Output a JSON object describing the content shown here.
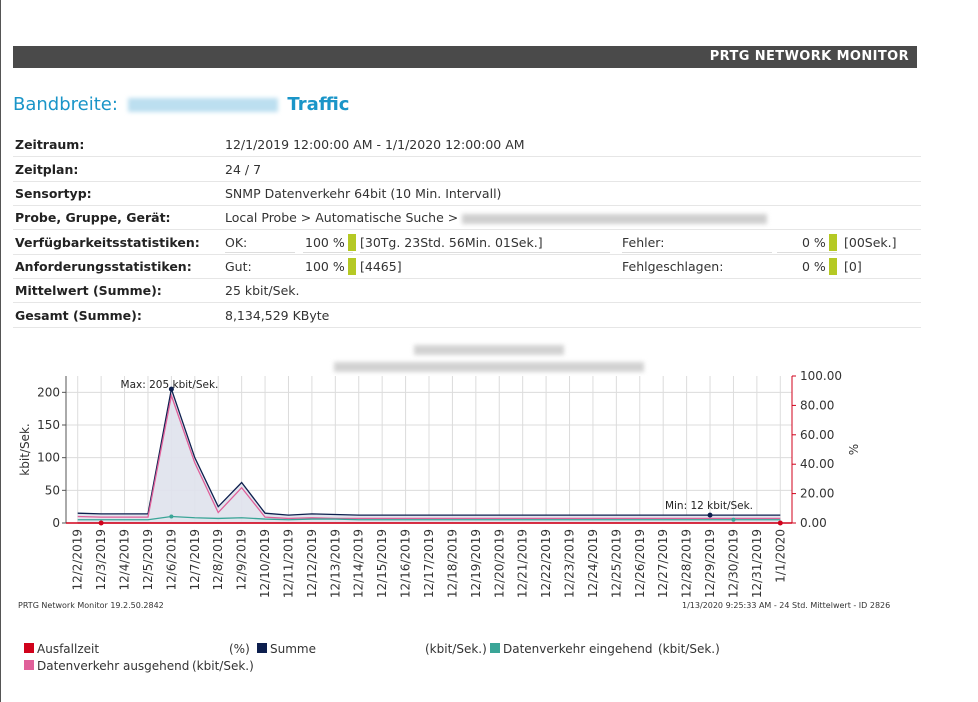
{
  "header": {
    "brand": "PRTG NETWORK MONITOR"
  },
  "report": {
    "title_prefix": "Bandbreite:",
    "title_suffix": "Traffic"
  },
  "info": {
    "zeitraum_label": "Zeitraum:",
    "zeitraum_value": "12/1/2019 12:00:00 AM - 1/1/2020 12:00:00 AM",
    "zeitplan_label": "Zeitplan:",
    "zeitplan_value": "24 / 7",
    "sensortyp_label": "Sensortyp:",
    "sensortyp_value": "SNMP Datenverkehr 64bit (10 Min. Intervall)",
    "probe_label": "Probe, Gruppe, Gerät:",
    "probe_value": "Local Probe > Automatische Suche >",
    "verf_label": "Verfügbarkeitsstatistiken:",
    "verf_ok_label": "OK:",
    "verf_ok_pct": "100 %",
    "verf_ok_dur": "[30Tg. 23Std. 56Min. 01Sek.]",
    "verf_err_label": "Fehler:",
    "verf_err_pct": "0 %",
    "verf_err_dur": "[00Sek.]",
    "anf_label": "Anforderungsstatistiken:",
    "anf_gut_label": "Gut:",
    "anf_gut_pct": "100 %",
    "anf_gut_count": "[4465]",
    "anf_fail_label": "Fehlgeschlagen:",
    "anf_fail_pct": "0 %",
    "anf_fail_count": "[0]",
    "mittel_label": "Mittelwert (Summe):",
    "mittel_value": "25 kbit/Sek.",
    "gesamt_label": "Gesamt (Summe):",
    "gesamt_value": "8,134,529 KByte"
  },
  "chart_data": {
    "type": "line",
    "x": [
      "12/2/2019",
      "12/3/2019",
      "12/4/2019",
      "12/5/2019",
      "12/6/2019",
      "12/7/2019",
      "12/8/2019",
      "12/9/2019",
      "12/10/2019",
      "12/11/2019",
      "12/12/2019",
      "12/13/2019",
      "12/14/2019",
      "12/15/2019",
      "12/16/2019",
      "12/17/2019",
      "12/18/2019",
      "12/19/2019",
      "12/20/2019",
      "12/21/2019",
      "12/22/2019",
      "12/23/2019",
      "12/24/2019",
      "12/25/2019",
      "12/26/2019",
      "12/27/2019",
      "12/28/2019",
      "12/29/2019",
      "12/30/2019",
      "12/31/2019",
      "1/1/2020"
    ],
    "ylabel": "kbit/Sek.",
    "ylim": [
      0,
      225
    ],
    "yticks": [
      0,
      50,
      100,
      150,
      200
    ],
    "y2label": "%",
    "y2lim": [
      0,
      100
    ],
    "y2ticks": [
      "0.00",
      "20.00",
      "40.00",
      "60.00",
      "80.00",
      "100.00"
    ],
    "series": [
      {
        "name": "Summe",
        "color": "#0d1f4e",
        "values": [
          15,
          14,
          14,
          14,
          205,
          100,
          25,
          62,
          15,
          12,
          14,
          13,
          12,
          12,
          12,
          12,
          12,
          12,
          12,
          12,
          12,
          12,
          12,
          12,
          12,
          12,
          12,
          12,
          12,
          12,
          12
        ]
      },
      {
        "name": "Datenverkehr ausgehend",
        "color": "#e0609a",
        "values": [
          10,
          9,
          9,
          9,
          195,
          92,
          16,
          54,
          9,
          7,
          8,
          7,
          7,
          7,
          7,
          7,
          7,
          7,
          7,
          7,
          7,
          7,
          7,
          7,
          7,
          7,
          7,
          7,
          7,
          7,
          7
        ]
      },
      {
        "name": "Datenverkehr eingehend",
        "color": "#3aa597",
        "values": [
          5,
          5,
          5,
          5,
          10,
          8,
          7,
          8,
          6,
          5,
          6,
          6,
          5,
          5,
          5,
          5,
          5,
          5,
          5,
          5,
          5,
          5,
          5,
          5,
          5,
          5,
          5,
          5,
          5,
          5,
          5
        ]
      },
      {
        "name": "Ausfallzeit",
        "color": "#d0021b",
        "axis": "right",
        "values": [
          0,
          0,
          0,
          0,
          0,
          0,
          0,
          0,
          0,
          0,
          0,
          0,
          0,
          0,
          0,
          0,
          0,
          0,
          0,
          0,
          0,
          0,
          0,
          0,
          0,
          0,
          0,
          0,
          0,
          0,
          0
        ]
      }
    ],
    "annotations": {
      "max_label": "Max: 205 kbit/Sek.",
      "min_label": "Min: 12 kbit/Sek."
    }
  },
  "chart_footer": {
    "left": "PRTG Network Monitor 19.2.50.2842",
    "right": "1/13/2020 9:25:33 AM - 24 Std. Mittelwert - ID 2826"
  },
  "legend": {
    "items": [
      {
        "name": "Ausfallzeit",
        "unit": "(%)",
        "color": "#d0021b"
      },
      {
        "name": "Summe",
        "unit": "(kbit/Sek.)",
        "color": "#0d1f4e"
      },
      {
        "name": "Datenverkehr eingehend",
        "unit": "(kbit/Sek.)",
        "color": "#3aa597"
      },
      {
        "name": "Datenverkehr ausgehend",
        "unit": "(kbit/Sek.)",
        "color": "#e0609a"
      }
    ]
  }
}
